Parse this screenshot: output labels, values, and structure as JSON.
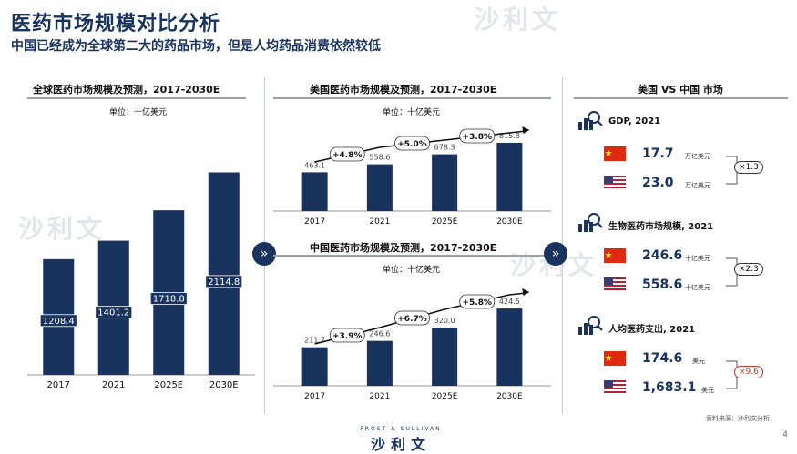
{
  "header": {
    "title": "医药市场规模对比分析",
    "subtitle": "中国已经成为全球第二大的药品市场，但是人均药品消费依然较低"
  },
  "left_panel": {
    "title": "全球医药市场规模及预测，2017-2030E",
    "unit": "单位：十亿美元"
  },
  "us_panel": {
    "title": "美国医药市场规模及预测，2017-2030E",
    "unit": "单位：十亿美元",
    "growth": [
      "+4.8%",
      "+5.0%",
      "+3.8%"
    ]
  },
  "cn_panel": {
    "title": "中国医药市场规模及预测，2017-2030E",
    "unit": "单位：十亿美元",
    "growth": [
      "+3.9%",
      "+6.7%",
      "+5.8%"
    ]
  },
  "right_panel": {
    "title": "美国 VS 中国 市场",
    "sections": [
      {
        "title": "GDP, 2021",
        "cn": "17.7",
        "cn_unit": "万亿美元",
        "us": "23.0",
        "us_unit": "万亿美元",
        "ratio": "×1.3"
      },
      {
        "title": "生物医药市场规模, 2021",
        "cn": "246.6",
        "cn_unit": "十亿美元",
        "us": "558.6",
        "us_unit": "十亿美元",
        "ratio": "×2.3"
      },
      {
        "title": "人均医药支出, 2021",
        "cn": "174.6",
        "cn_unit": "美元",
        "us": "1,683.1",
        "us_unit": "美元",
        "ratio": "×9.6"
      }
    ]
  },
  "source": "资料来源：沙利文分析",
  "page": "4",
  "logo": {
    "sub": "FROST & SULLIVAN",
    "main": "沙利文"
  },
  "watermark": "沙利文",
  "icons": {
    "arrow": "double-chevron-right-icon",
    "search": "magnifier-chart-icon"
  },
  "colors": {
    "navy": "#17335e",
    "red": "#c0392b"
  },
  "chart_data": [
    {
      "type": "bar",
      "title": "全球医药市场规模及预测，2017-2030E",
      "categories": [
        "2017",
        "2021",
        "2025E",
        "2030E"
      ],
      "values": [
        1208.4,
        1401.2,
        1718.8,
        2114.8
      ],
      "unit": "十亿美元"
    },
    {
      "type": "bar",
      "title": "美国医药市场规模及预测，2017-2030E",
      "categories": [
        "2017",
        "2021",
        "2025E",
        "2030E"
      ],
      "values": [
        463.1,
        558.6,
        678.3,
        815.8
      ],
      "unit": "十亿美元"
    },
    {
      "type": "bar",
      "title": "中国医药市场规模及预测，2017-2030E",
      "categories": [
        "2017",
        "2021",
        "2025E",
        "2030E"
      ],
      "values": [
        211.7,
        246.6,
        320.0,
        424.5
      ],
      "unit": "十亿美元"
    }
  ]
}
